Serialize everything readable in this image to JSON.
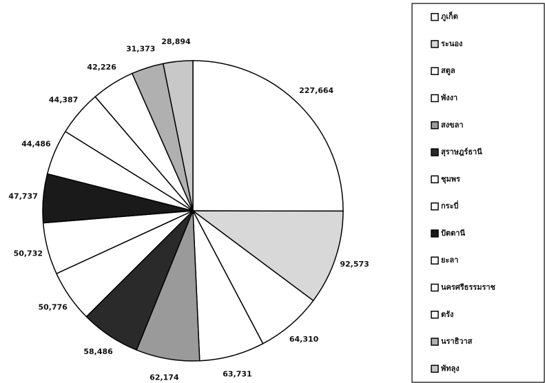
{
  "chart_data": {
    "type": "pie",
    "categories": [
      "ภูเก็ต",
      "ระนอง",
      "สตูล",
      "พังงา",
      "สงขลา",
      "สุราษฎร์ธานี",
      "ชุมพร",
      "กระบี่",
      "ปัตตานี",
      "ยะลา",
      "นครศรีธรรมราช",
      "ตรัง",
      "นราธิวาส",
      "พัทลุง"
    ],
    "values": [
      227664,
      92573,
      64310,
      63731,
      62174,
      58486,
      50776,
      50732,
      47737,
      44486,
      44387,
      42226,
      31373,
      28894
    ],
    "value_labels": [
      "227,664",
      "92,573",
      "64,310",
      "63,731",
      "62,174",
      "58,486",
      "50,776",
      "50,732",
      "47,737",
      "44,486",
      "44,387",
      "42,226",
      "31,373",
      "28,894"
    ],
    "colors": [
      "#ffffff",
      "#d8d8d8",
      "#ffffff",
      "#ffffff",
      "#9a9a9a",
      "#2a2a2a",
      "#ffffff",
      "#ffffff",
      "#1a1a1a",
      "#ffffff",
      "#ffffff",
      "#ffffff",
      "#b0b0b0",
      "#c8c8c8"
    ]
  }
}
